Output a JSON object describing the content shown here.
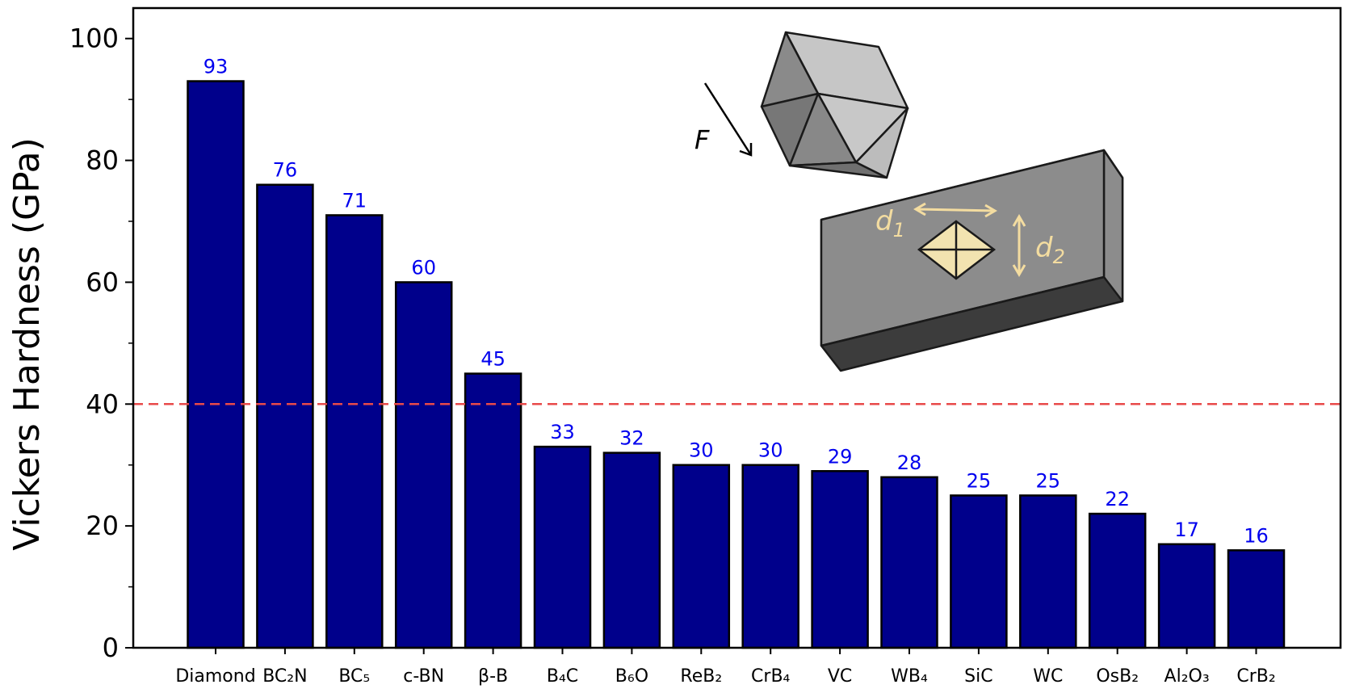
{
  "chart_data": {
    "type": "bar",
    "title": "",
    "xlabel": "",
    "ylabel": "Vickers Hardness (GPa)",
    "ylim": [
      0,
      105
    ],
    "yticks": [
      0,
      20,
      40,
      60,
      80,
      100
    ],
    "grid": false,
    "categories": [
      "Diamond",
      "BC₂N",
      "BC₅",
      "c-BN",
      "β-B",
      "B₄C",
      "B₆O",
      "ReB₂",
      "CrB₄",
      "VC",
      "WB₄",
      "SiC",
      "WC",
      "OsB₂",
      "Al₂O₃",
      "CrB₂"
    ],
    "values": [
      93,
      76,
      71,
      60,
      45,
      33,
      32,
      30,
      30,
      29,
      28,
      25,
      25,
      22,
      17,
      16
    ],
    "data_labels": [
      "93",
      "76",
      "71",
      "60",
      "45",
      "33",
      "32",
      "30",
      "30",
      "29",
      "28",
      "25",
      "25",
      "22",
      "17",
      "16"
    ],
    "reference_line": {
      "y": 40,
      "style": "dashed",
      "color": "#e84a4a"
    },
    "colors": {
      "bar": "#00008b",
      "bar_edge": "#000000",
      "data_label": "#0000ee"
    },
    "inset": {
      "force_label": "F",
      "diagonal_1_label": "d",
      "diagonal_1_sub": "1",
      "diagonal_2_label": "d",
      "diagonal_2_sub": "2"
    }
  }
}
